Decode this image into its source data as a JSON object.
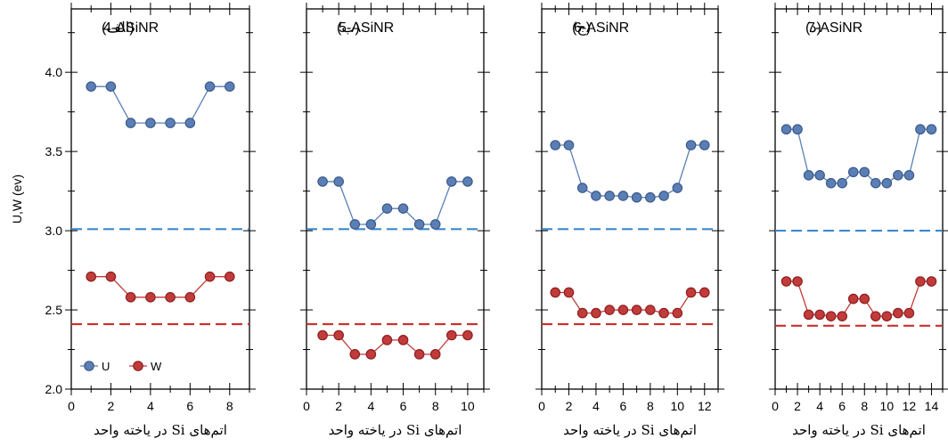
{
  "chart_data": {
    "type": "line",
    "ylabel": "U,W (ev)",
    "ylim": [
      2.0,
      4.4
    ],
    "y_ticks": [
      "2.0",
      "2.5",
      "3.0",
      "3.5",
      "4.0"
    ],
    "legend": {
      "placement": "bottom-left-of-first-panel",
      "entries": [
        "U",
        "W"
      ]
    },
    "colors": {
      "U": "#5b7fb5",
      "W": "#c23b3b",
      "U_ref": "#3c88cf",
      "W_ref": "#c9302c",
      "marker_edge_U": "#3b5a8a",
      "marker_edge_W": "#8e1f1f"
    },
    "panels": [
      {
        "title": "4-ASiNR",
        "label": "(الف)",
        "xlabel": "اتم‌های Si در یاخته واحد",
        "xlim": [
          0,
          9
        ],
        "x_ticks": [
          "0",
          "2",
          "4",
          "6",
          "8"
        ],
        "U_ref": 3.01,
        "W_ref": 2.41,
        "series": [
          {
            "name": "U",
            "x": [
              1,
              2,
              3,
              4,
              5,
              6,
              7,
              8
            ],
            "values": [
              3.91,
              3.91,
              3.68,
              3.68,
              3.68,
              3.68,
              3.91,
              3.91
            ]
          },
          {
            "name": "W",
            "x": [
              1,
              2,
              3,
              4,
              5,
              6,
              7,
              8
            ],
            "values": [
              2.71,
              2.71,
              2.58,
              2.58,
              2.58,
              2.58,
              2.71,
              2.71
            ]
          }
        ]
      },
      {
        "title": "5-ASiNR",
        "label": "(ب)",
        "xlabel": "اتم‌های Si در یاخته واحد",
        "xlim": [
          0,
          11
        ],
        "x_ticks": [
          "0",
          "2",
          "4",
          "6",
          "8",
          "10"
        ],
        "U_ref": 3.01,
        "W_ref": 2.41,
        "series": [
          {
            "name": "U",
            "x": [
              1,
              2,
              3,
              4,
              5,
              6,
              7,
              8,
              9,
              10
            ],
            "values": [
              3.31,
              3.31,
              3.04,
              3.04,
              3.14,
              3.14,
              3.04,
              3.04,
              3.31,
              3.31
            ]
          },
          {
            "name": "W",
            "x": [
              1,
              2,
              3,
              4,
              5,
              6,
              7,
              8,
              9,
              10
            ],
            "values": [
              2.34,
              2.34,
              2.22,
              2.22,
              2.31,
              2.31,
              2.22,
              2.22,
              2.34,
              2.34
            ]
          }
        ]
      },
      {
        "title": "6-ASiNR",
        "label": "(ج)",
        "xlabel": "اتم‌های Si در یاخته واحد",
        "xlim": [
          0,
          13
        ],
        "x_ticks": [
          "0",
          "2",
          "4",
          "6",
          "8",
          "10",
          "12"
        ],
        "U_ref": 3.01,
        "W_ref": 2.41,
        "series": [
          {
            "name": "U",
            "x": [
              1,
              2,
              3,
              4,
              5,
              6,
              7,
              8,
              9,
              10,
              11,
              12
            ],
            "values": [
              3.54,
              3.54,
              3.27,
              3.22,
              3.22,
              3.22,
              3.21,
              3.21,
              3.22,
              3.27,
              3.54,
              3.54
            ]
          },
          {
            "name": "W",
            "x": [
              1,
              2,
              3,
              4,
              5,
              6,
              7,
              8,
              9,
              10,
              11,
              12
            ],
            "values": [
              2.61,
              2.61,
              2.48,
              2.48,
              2.5,
              2.5,
              2.5,
              2.5,
              2.48,
              2.48,
              2.61,
              2.61
            ]
          }
        ]
      },
      {
        "title": "7-ASiNR",
        "label": "(د)",
        "xlabel": "اتم‌های Si در یاخته واحد",
        "xlim": [
          0,
          15
        ],
        "x_ticks": [
          "0",
          "2",
          "4",
          "6",
          "8",
          "10",
          "12",
          "14"
        ],
        "U_ref": 3.0,
        "W_ref": 2.4,
        "series": [
          {
            "name": "U",
            "x": [
              1,
              2,
              3,
              4,
              5,
              6,
              7,
              8,
              9,
              10,
              11,
              12,
              13,
              14
            ],
            "values": [
              3.64,
              3.64,
              3.35,
              3.35,
              3.3,
              3.3,
              3.37,
              3.37,
              3.3,
              3.3,
              3.35,
              3.35,
              3.64,
              3.64
            ]
          },
          {
            "name": "W",
            "x": [
              1,
              2,
              3,
              4,
              5,
              6,
              7,
              8,
              9,
              10,
              11,
              12,
              13,
              14
            ],
            "values": [
              2.68,
              2.68,
              2.47,
              2.47,
              2.46,
              2.46,
              2.57,
              2.57,
              2.46,
              2.46,
              2.48,
              2.48,
              2.68,
              2.68
            ]
          }
        ]
      }
    ]
  }
}
